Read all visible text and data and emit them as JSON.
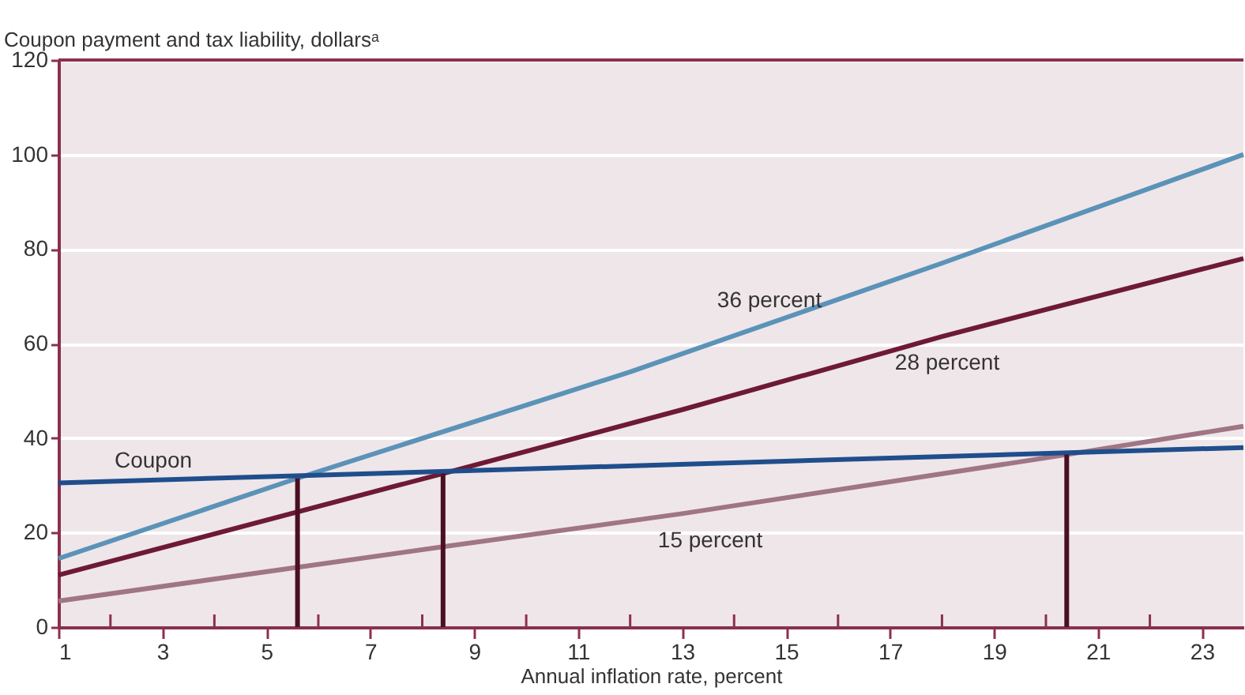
{
  "chart_data": {
    "type": "line",
    "xlabel": "Annual inflation rate, percent",
    "ylabel": "Coupon payment and tax liability, dollarsᵃ",
    "xlim": [
      1,
      23.8
    ],
    "ylim": [
      0,
      120
    ],
    "xticks": [
      1,
      {
        "value": 2,
        "label": null
      },
      3,
      {
        "value": 4,
        "label": null
      },
      5,
      {
        "value": 6,
        "label": null
      },
      7,
      {
        "value": 8,
        "label": null
      },
      9,
      {
        "value": 10,
        "label": null
      },
      11,
      {
        "value": 12,
        "label": null
      },
      13,
      {
        "value": 14,
        "label": null
      },
      15,
      {
        "value": 16,
        "label": null
      },
      17,
      {
        "value": 18,
        "label": null
      },
      19,
      {
        "value": 20,
        "label": null
      },
      21,
      {
        "value": 22,
        "label": null
      },
      23
    ],
    "yticks": [
      0,
      20,
      40,
      60,
      80,
      100,
      120
    ],
    "grid": "y",
    "line_style": "solid",
    "marker": "none",
    "series": [
      {
        "name": "36 percent",
        "color": "#5b93b8",
        "x": [
          1,
          5.6,
          12,
          18,
          23.8
        ],
        "values": [
          14.5,
          31.5,
          54,
          77,
          100
        ]
      },
      {
        "name": "28 percent",
        "color": "#6e1a34",
        "x": [
          1,
          8.4,
          13,
          18,
          23.8
        ],
        "values": [
          11,
          32.5,
          46,
          61.5,
          78
        ]
      },
      {
        "name": "15 percent",
        "color": "#a07585",
        "x": [
          1,
          8.4,
          13,
          20.4,
          23.8
        ],
        "values": [
          5.5,
          17,
          24,
          36.5,
          42.5
        ]
      },
      {
        "name": "Coupon",
        "color": "#1f4e8c",
        "x": [
          1,
          23.8
        ],
        "values": [
          30.5,
          38
        ]
      },
      {
        "color": "#4a0f22",
        "x": [
          5.6,
          5.6
        ],
        "values": [
          0,
          31.5
        ]
      },
      {
        "color": "#4a0f22",
        "x": [
          8.4,
          8.4
        ],
        "values": [
          0,
          32.5
        ]
      },
      {
        "color": "#4a0f22",
        "x": [
          20.4,
          20.4
        ],
        "values": [
          0,
          36.5
        ]
      }
    ]
  }
}
